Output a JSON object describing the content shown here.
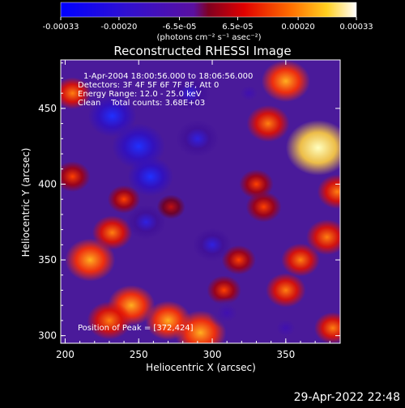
{
  "colorbar": {
    "ticks": [
      "-0.00033",
      "-0.00020",
      "-6.5e-05",
      "6.5e-05",
      "0.00020",
      "0.00033"
    ],
    "tick_values": [
      -0.00033,
      -0.0002,
      -6.5e-05,
      6.5e-05,
      0.0002,
      0.00033
    ],
    "range": [
      -0.00033,
      0.00033
    ],
    "units": "(photons cm⁻² s⁻¹ asec⁻²)"
  },
  "title": "Reconstructed RHESSI Image",
  "info": {
    "time_range": "1-Apr-2004 18:00:56.000 to 18:06:56.000",
    "detectors": "Detectors: 3F 4F 5F 6F 7F 8F, Att 0",
    "energy": "Energy Range: 12.0 - 25.0 keV",
    "clean": "Clean    Total counts: 3.68E+03"
  },
  "peak_label": "Position of Peak = [372,424]",
  "footer_timestamp": "29-Apr-2022 22:48",
  "chart_data": {
    "type": "heatmap",
    "title": "Reconstructed RHESSI Image",
    "xlabel": "Heliocentric X (arcsec)",
    "ylabel": "Heliocentric Y (arcsec)",
    "xlim": [
      197,
      387
    ],
    "ylim": [
      295,
      482
    ],
    "x_ticks": [
      200,
      250,
      300,
      350
    ],
    "y_ticks": [
      300,
      350,
      400,
      450
    ],
    "x_tick_labels": [
      "200",
      "250",
      "300",
      "350"
    ],
    "y_tick_labels": [
      "300",
      "350",
      "400",
      "450"
    ],
    "peak": [
      372,
      424
    ],
    "colormap": [
      "#0000ff",
      "#4000c0",
      "#6020a0",
      "#ff3000",
      "#ffa000",
      "#ffff60",
      "#ffffff"
    ],
    "blobs": [
      {
        "x": 372,
        "y": 424,
        "value": 0.00033
      },
      {
        "x": 350,
        "y": 468,
        "value": 0.00022
      },
      {
        "x": 338,
        "y": 440,
        "value": 0.00018
      },
      {
        "x": 385,
        "y": 395,
        "value": 0.00016
      },
      {
        "x": 378,
        "y": 365,
        "value": 0.00017
      },
      {
        "x": 350,
        "y": 330,
        "value": 0.00016
      },
      {
        "x": 335,
        "y": 385,
        "value": 0.00013
      },
      {
        "x": 318,
        "y": 350,
        "value": 0.00012
      },
      {
        "x": 292,
        "y": 302,
        "value": 0.00024
      },
      {
        "x": 270,
        "y": 310,
        "value": 0.0002
      },
      {
        "x": 245,
        "y": 320,
        "value": 0.00021
      },
      {
        "x": 230,
        "y": 310,
        "value": 0.00019
      },
      {
        "x": 217,
        "y": 350,
        "value": 0.00023
      },
      {
        "x": 232,
        "y": 368,
        "value": 0.00016
      },
      {
        "x": 205,
        "y": 405,
        "value": 0.00013
      },
      {
        "x": 240,
        "y": 390,
        "value": 0.00011
      },
      {
        "x": 205,
        "y": 460,
        "value": 0.00014
      },
      {
        "x": 330,
        "y": 400,
        "value": 0.00012
      },
      {
        "x": 360,
        "y": 350,
        "value": 0.00015
      },
      {
        "x": 308,
        "y": 330,
        "value": 0.00012
      },
      {
        "x": 272,
        "y": 385,
        "value": 8e-05
      },
      {
        "x": 382,
        "y": 305,
        "value": 0.00014
      },
      {
        "x": 250,
        "y": 425,
        "value": -0.00025
      },
      {
        "x": 232,
        "y": 445,
        "value": -0.00022
      },
      {
        "x": 258,
        "y": 405,
        "value": -0.0002
      },
      {
        "x": 290,
        "y": 430,
        "value": -0.00018
      },
      {
        "x": 285,
        "y": 460,
        "value": -0.00016
      },
      {
        "x": 255,
        "y": 375,
        "value": -0.00016
      },
      {
        "x": 300,
        "y": 360,
        "value": -0.00015
      },
      {
        "x": 310,
        "y": 315,
        "value": -0.00014
      },
      {
        "x": 350,
        "y": 305,
        "value": -0.00012
      },
      {
        "x": 325,
        "y": 460,
        "value": -0.0001
      }
    ]
  }
}
